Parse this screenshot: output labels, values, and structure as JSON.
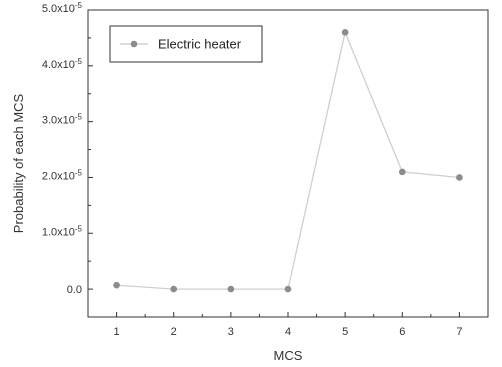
{
  "chart_data": {
    "type": "line",
    "xlabel": "MCS",
    "ylabel": "Probability of each MCS",
    "x": [
      1,
      2,
      3,
      4,
      5,
      6,
      7
    ],
    "xlim": [
      0.5,
      7.5
    ],
    "ylim": [
      -5e-06,
      5e-05
    ],
    "y_ticks": [
      {
        "value": 0.0,
        "mantissa": "0.0",
        "exp": ""
      },
      {
        "value": 1e-05,
        "mantissa": "1.0x10",
        "exp": "-5"
      },
      {
        "value": 2e-05,
        "mantissa": "2.0x10",
        "exp": "-5"
      },
      {
        "value": 3e-05,
        "mantissa": "3.0x10",
        "exp": "-5"
      },
      {
        "value": 4e-05,
        "mantissa": "4.0x10",
        "exp": "-5"
      },
      {
        "value": 5e-05,
        "mantissa": "5.0x10",
        "exp": "-5"
      }
    ],
    "series": [
      {
        "name": "Electric heater",
        "values": [
          7e-07,
          0.0,
          0.0,
          0.0,
          4.6e-05,
          2.1e-05,
          2e-05
        ],
        "color": "#cfcfcf",
        "marker_color": "#8c8c8c"
      }
    ],
    "legend": "top-left",
    "grid": false
  }
}
